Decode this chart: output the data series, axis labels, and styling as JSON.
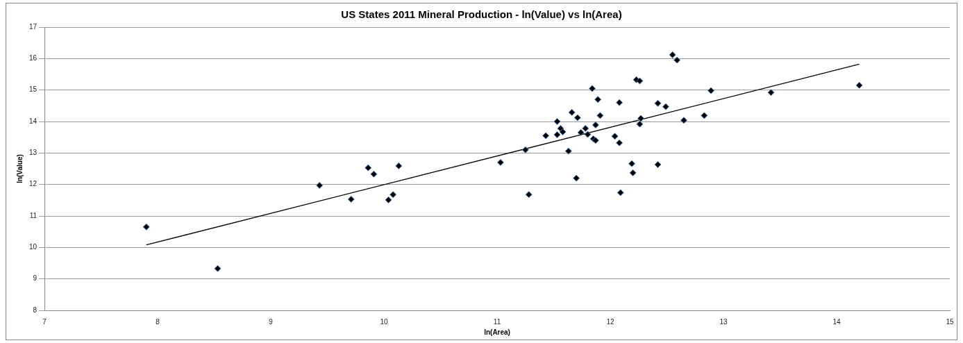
{
  "chart_data": {
    "type": "scatter",
    "title": "US States 2011 Mineral Production - ln(Value) vs ln(Area)",
    "xlabel": "ln(Area)",
    "ylabel": "ln(Value)",
    "xlim": [
      7,
      15
    ],
    "xticks": [
      7,
      8,
      9,
      10,
      11,
      12,
      13,
      14,
      15
    ],
    "ylim": [
      8,
      17
    ],
    "yticks": [
      8,
      9,
      10,
      11,
      12,
      13,
      14,
      15,
      16,
      17
    ],
    "grid": "y",
    "legend": false,
    "marker": "diamond",
    "series": [
      {
        "color": "#000000",
        "x": [
          7.9,
          8.53,
          9.43,
          9.71,
          9.86,
          9.91,
          10.04,
          10.08,
          10.13,
          11.03,
          11.25,
          11.28,
          11.43,
          11.53,
          11.53,
          11.56,
          11.58,
          11.63,
          11.66,
          11.7,
          11.71,
          11.74,
          11.78,
          11.8,
          11.84,
          11.85,
          11.87,
          11.87,
          11.89,
          11.91,
          12.04,
          12.08,
          12.08,
          12.09,
          12.19,
          12.2,
          12.23,
          12.26,
          12.26,
          12.27,
          12.42,
          12.42,
          12.49,
          12.55,
          12.59,
          12.65,
          12.83,
          12.89,
          13.42,
          14.2
        ],
        "values": [
          10.65,
          9.33,
          11.97,
          11.53,
          12.53,
          12.33,
          11.51,
          11.68,
          12.59,
          12.7,
          13.1,
          11.68,
          13.55,
          14.0,
          13.58,
          13.78,
          13.67,
          13.06,
          14.29,
          12.2,
          14.12,
          13.65,
          13.78,
          13.59,
          15.05,
          13.45,
          13.4,
          13.89,
          14.7,
          14.19,
          13.53,
          14.6,
          13.32,
          11.74,
          12.66,
          12.37,
          15.33,
          15.29,
          13.92,
          14.1,
          14.58,
          12.63,
          14.47,
          16.12,
          15.95,
          14.04,
          14.19,
          14.98,
          14.92,
          15.15
        ]
      },
      {
        "type": "line",
        "color": "#000000",
        "marker": "none",
        "x": [
          7.9,
          14.2
        ],
        "values": [
          10.08,
          15.82
        ]
      }
    ]
  }
}
